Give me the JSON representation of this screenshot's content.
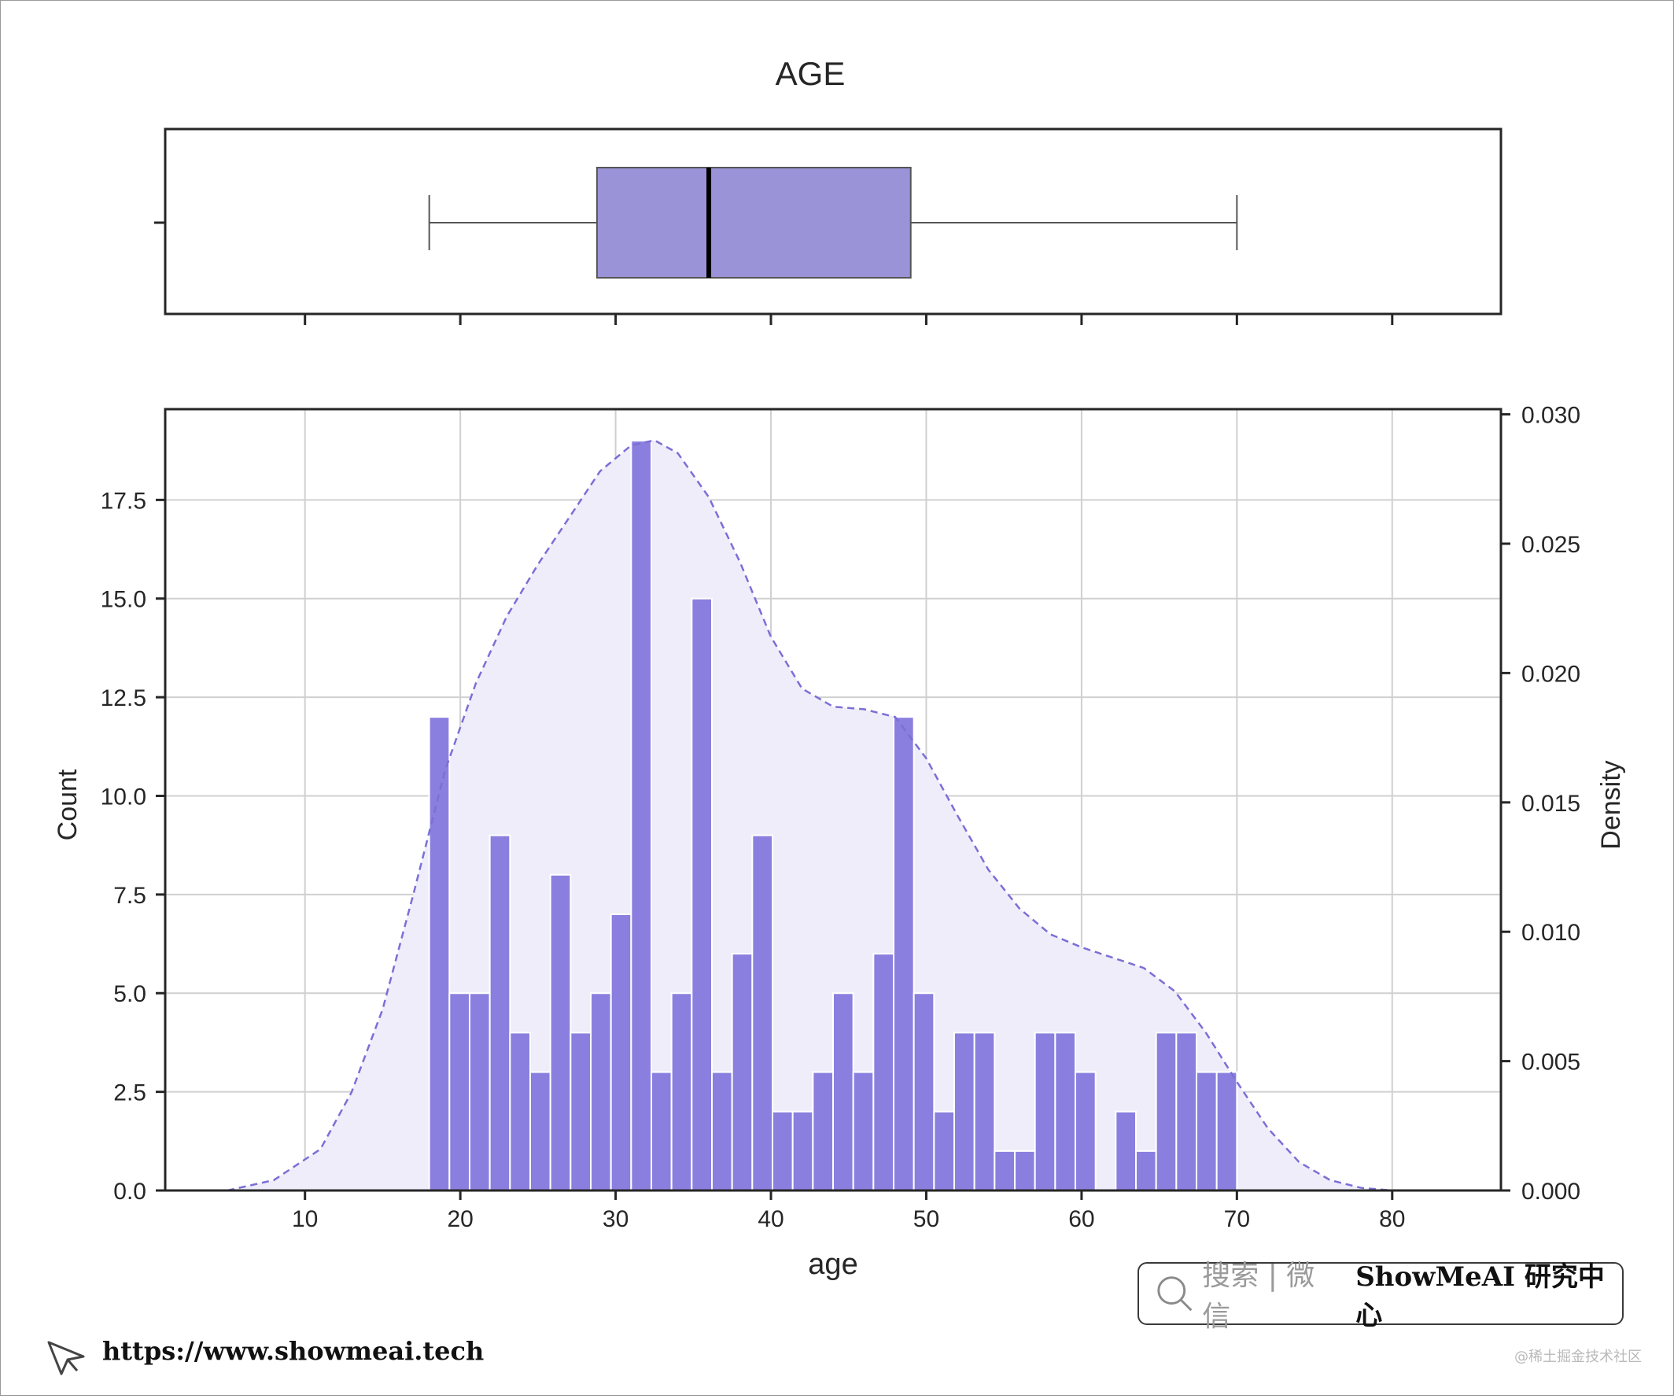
{
  "chart_data": [
    {
      "type": "box",
      "title": "AGE",
      "orientation": "horizontal",
      "whisker_low": 18,
      "q1": 28.8,
      "median": 36,
      "q3": 49,
      "whisker_high": 70,
      "xlim": [
        1,
        87
      ],
      "color": "#9b93d8"
    },
    {
      "type": "bar",
      "subtype": "histogram_with_kde",
      "xlabel": "age",
      "ylabel": "Count",
      "y2label": "Density",
      "xlim": [
        1,
        87
      ],
      "ylim": [
        0,
        19.8
      ],
      "y2lim": [
        0,
        0.0302
      ],
      "xticks": [
        "10",
        "20",
        "30",
        "40",
        "50",
        "60",
        "70",
        "80"
      ],
      "xtick_values": [
        10,
        20,
        30,
        40,
        50,
        60,
        70,
        80
      ],
      "yticks": [
        "0.0",
        "2.5",
        "5.0",
        "7.5",
        "10.0",
        "12.5",
        "15.0",
        "17.5"
      ],
      "ytick_values": [
        0,
        2.5,
        5,
        7.5,
        10,
        12.5,
        15,
        17.5
      ],
      "y2ticks": [
        "0.000",
        "0.005",
        "0.010",
        "0.015",
        "0.020",
        "0.025",
        "0.030"
      ],
      "y2tick_values": [
        0,
        0.005,
        0.01,
        0.015,
        0.02,
        0.025,
        0.03
      ],
      "grid": true,
      "bin_start": 18,
      "bin_width": 1.3,
      "counts": [
        12,
        5,
        5,
        9,
        4,
        3,
        8,
        4,
        5,
        7,
        19,
        3,
        5,
        15,
        3,
        6,
        9,
        2,
        2,
        3,
        5,
        3,
        6,
        12,
        5,
        2,
        4,
        4,
        1,
        1,
        4,
        4,
        3,
        0,
        2,
        1,
        4,
        4,
        3,
        3
      ],
      "bar_color": "#8a7fdf",
      "kde": {
        "x": [
          5,
          8,
          11,
          13,
          15,
          17,
          19,
          21,
          23,
          25,
          27,
          29,
          31,
          32.5,
          34,
          36,
          38,
          40,
          42,
          44,
          46,
          48,
          50,
          52,
          54,
          56,
          58,
          60,
          62,
          64,
          66,
          68,
          70,
          72,
          74,
          76,
          78,
          80,
          82
        ],
        "density": [
          0,
          0.0004,
          0.0016,
          0.0038,
          0.007,
          0.0115,
          0.0162,
          0.0196,
          0.0222,
          0.0242,
          0.026,
          0.0278,
          0.0288,
          0.029,
          0.0285,
          0.0268,
          0.0243,
          0.0214,
          0.0194,
          0.0187,
          0.0186,
          0.0183,
          0.0167,
          0.0145,
          0.0124,
          0.0109,
          0.0099,
          0.0094,
          0.009,
          0.0086,
          0.0077,
          0.0061,
          0.0042,
          0.0024,
          0.0011,
          0.0004,
          0.0001,
          0,
          0
        ],
        "color": "#7b6fd6",
        "fill": "#efedfa",
        "style": "dashed"
      }
    }
  ],
  "watermark": {
    "search_text": "搜索 | 微信",
    "brand": "ShowMeAI 研究中心",
    "search_icon": "magnifier-icon"
  },
  "footer": {
    "url": "https://www.showmeai.tech",
    "logo_icon": "cursor-arrow-icon",
    "corner_credit": "@稀土掘金技术社区"
  }
}
